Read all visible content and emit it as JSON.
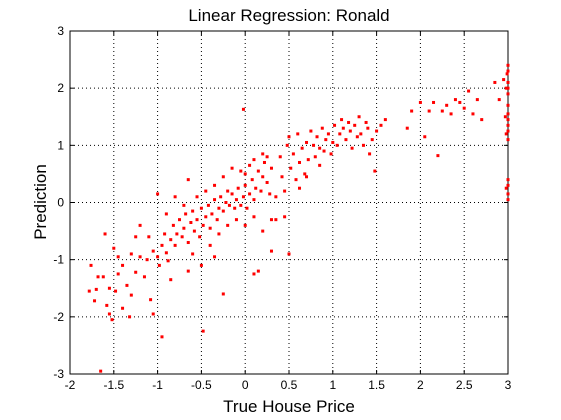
{
  "chart_data": {
    "type": "scatter",
    "title": "Linear Regression: Ronald",
    "xlabel": "True House Price",
    "ylabel": "Prediction",
    "xlim": [
      -2,
      3
    ],
    "ylim": [
      -3,
      3
    ],
    "x_ticks": [
      -2,
      -1.5,
      -1,
      -0.5,
      0,
      0.5,
      1,
      1.5,
      2,
      2.5,
      3
    ],
    "x_tick_labels": [
      "-2",
      "-1.5",
      "-1",
      "-0.5",
      "0",
      "0.5",
      "1",
      "1.5",
      "2",
      "2.5",
      "3"
    ],
    "y_ticks": [
      -3,
      -2,
      -1,
      0,
      1,
      2,
      3
    ],
    "y_tick_labels": [
      "-3",
      "-2",
      "-1",
      "0",
      "1",
      "2",
      "3"
    ],
    "grid": true,
    "marker": "point",
    "color": "#ff0000",
    "points": [
      [
        -1.76,
        -1.1
      ],
      [
        -1.7,
        -1.52
      ],
      [
        -1.72,
        -1.72
      ],
      [
        -1.62,
        -1.3
      ],
      [
        -1.58,
        -1.8
      ],
      [
        -1.55,
        -1.95
      ],
      [
        -1.52,
        -2.05
      ],
      [
        -1.48,
        -1.55
      ],
      [
        -1.45,
        -1.25
      ],
      [
        -1.4,
        -1.1
      ],
      [
        -1.35,
        -1.45
      ],
      [
        -1.3,
        -1.62
      ],
      [
        -1.25,
        -1.22
      ],
      [
        -1.2,
        -0.95
      ],
      [
        -1.15,
        -1.3
      ],
      [
        -1.6,
        -0.55
      ],
      [
        -1.5,
        -0.8
      ],
      [
        -1.45,
        -0.95
      ],
      [
        -1.3,
        -0.9
      ],
      [
        -1.25,
        -0.6
      ],
      [
        -1.12,
        -1.0
      ],
      [
        -1.05,
        -0.85
      ],
      [
        -1.0,
        -0.95
      ],
      [
        -0.98,
        -1.1
      ],
      [
        -0.95,
        -0.75
      ],
      [
        -0.92,
        -0.55
      ],
      [
        -0.9,
        -0.88
      ],
      [
        -0.88,
        -1.02
      ],
      [
        -0.85,
        -0.65
      ],
      [
        -0.82,
        -0.4
      ],
      [
        -0.8,
        -0.75
      ],
      [
        -0.78,
        -0.55
      ],
      [
        -0.75,
        -0.3
      ],
      [
        -0.72,
        -0.6
      ],
      [
        -0.7,
        -0.45
      ],
      [
        -0.68,
        -0.2
      ],
      [
        -0.65,
        -0.7
      ],
      [
        -0.62,
        -0.35
      ],
      [
        -0.6,
        -0.15
      ],
      [
        -0.58,
        -0.5
      ],
      [
        -0.55,
        -0.3
      ],
      [
        -0.52,
        -0.6
      ],
      [
        -0.5,
        -0.1
      ],
      [
        -0.48,
        -0.4
      ],
      [
        -0.45,
        -0.25
      ],
      [
        -0.42,
        -0.05
      ],
      [
        -0.4,
        -0.45
      ],
      [
        -0.38,
        -0.2
      ],
      [
        -0.35,
        0.05
      ],
      [
        -0.32,
        -0.3
      ],
      [
        -0.3,
        -0.1
      ],
      [
        -0.28,
        0.1
      ],
      [
        -0.25,
        -0.15
      ],
      [
        -0.22,
        0.0
      ],
      [
        -0.2,
        0.2
      ],
      [
        -0.18,
        -0.05
      ],
      [
        -0.15,
        0.15
      ],
      [
        -0.12,
        -0.1
      ],
      [
        -0.1,
        0.05
      ],
      [
        -0.08,
        0.25
      ],
      [
        -0.05,
        -0.05
      ],
      [
        -0.02,
        0.1
      ],
      [
        0.0,
        0.3
      ],
      [
        0.02,
        -0.1
      ],
      [
        0.05,
        0.15
      ],
      [
        0.08,
        0.4
      ],
      [
        0.1,
        0.05
      ],
      [
        0.12,
        0.25
      ],
      [
        0.15,
        0.55
      ],
      [
        0.18,
        0.2
      ],
      [
        0.2,
        0.45
      ],
      [
        0.22,
        0.7
      ],
      [
        0.25,
        0.35
      ],
      [
        0.28,
        0.15
      ],
      [
        0.3,
        0.6
      ],
      [
        0.05,
        0.65
      ],
      [
        -0.05,
        0.55
      ],
      [
        0.1,
        0.75
      ],
      [
        0.2,
        0.85
      ],
      [
        0.25,
        0.8
      ],
      [
        -0.6,
        -0.9
      ],
      [
        -0.5,
        -1.1
      ],
      [
        -0.4,
        -0.75
      ],
      [
        -0.3,
        -0.55
      ],
      [
        -0.2,
        -0.4
      ],
      [
        -0.1,
        -0.3
      ],
      [
        0.0,
        -0.4
      ],
      [
        0.1,
        -0.25
      ],
      [
        0.2,
        -0.5
      ],
      [
        0.3,
        -0.3
      ],
      [
        -0.8,
        0.1
      ],
      [
        -0.7,
        -0.05
      ],
      [
        -0.55,
        0.1
      ],
      [
        -0.65,
        0.4
      ],
      [
        -0.35,
        0.3
      ],
      [
        -0.45,
        0.2
      ],
      [
        -0.25,
        0.45
      ],
      [
        0.0,
        0.5
      ],
      [
        -0.15,
        0.6
      ],
      [
        -1.0,
        0.15
      ],
      [
        -0.9,
        -0.2
      ],
      [
        -1.1,
        -0.6
      ],
      [
        -1.2,
        -0.4
      ],
      [
        -0.85,
        -1.35
      ],
      [
        -0.65,
        -1.2
      ],
      [
        -0.35,
        -0.95
      ],
      [
        0.1,
        -1.25
      ],
      [
        0.15,
        -1.2
      ],
      [
        -0.25,
        -1.6
      ],
      [
        -0.48,
        -2.25
      ],
      [
        -0.95,
        -2.35
      ],
      [
        -1.05,
        -1.95
      ],
      [
        -1.08,
        -1.7
      ],
      [
        -1.65,
        -2.95
      ],
      [
        -1.55,
        -1.5
      ],
      [
        -1.78,
        -1.55
      ],
      [
        -1.68,
        -1.3
      ],
      [
        -1.4,
        -1.85
      ],
      [
        -1.32,
        -2.0
      ],
      [
        -0.02,
        1.63
      ],
      [
        0.35,
        0.1
      ],
      [
        0.35,
        -0.3
      ],
      [
        0.4,
        0.8
      ],
      [
        0.42,
        0.45
      ],
      [
        0.45,
        0.2
      ],
      [
        0.48,
        1.0
      ],
      [
        0.5,
        1.15
      ],
      [
        0.52,
        0.6
      ],
      [
        0.55,
        0.85
      ],
      [
        0.58,
        0.4
      ],
      [
        0.6,
        1.2
      ],
      [
        0.62,
        0.7
      ],
      [
        0.65,
        0.95
      ],
      [
        0.68,
        0.5
      ],
      [
        0.7,
        1.05
      ],
      [
        0.72,
        0.75
      ],
      [
        0.75,
        1.25
      ],
      [
        0.78,
        1.0
      ],
      [
        0.8,
        0.8
      ],
      [
        0.82,
        1.15
      ],
      [
        0.85,
        0.95
      ],
      [
        0.88,
        1.3
      ],
      [
        0.9,
        0.9
      ],
      [
        0.92,
        1.1
      ],
      [
        0.95,
        1.2
      ],
      [
        0.98,
        0.85
      ],
      [
        1.0,
        1.05
      ],
      [
        1.02,
        1.35
      ],
      [
        1.05,
        1.0
      ],
      [
        1.08,
        1.2
      ],
      [
        1.1,
        1.45
      ],
      [
        1.12,
        1.3
      ],
      [
        1.15,
        1.1
      ],
      [
        1.18,
        1.4
      ],
      [
        1.2,
        1.25
      ],
      [
        1.22,
        0.95
      ],
      [
        1.25,
        1.35
      ],
      [
        1.28,
        1.15
      ],
      [
        1.3,
        1.5
      ],
      [
        1.32,
        1.2
      ],
      [
        1.35,
        1.0
      ],
      [
        1.38,
        1.4
      ],
      [
        1.4,
        1.3
      ],
      [
        1.42,
        0.85
      ],
      [
        1.45,
        1.1
      ],
      [
        1.48,
        0.55
      ],
      [
        1.5,
        1.25
      ],
      [
        1.55,
        1.35
      ],
      [
        1.6,
        1.45
      ],
      [
        0.45,
        -0.25
      ],
      [
        0.5,
        -0.9
      ],
      [
        0.3,
        -0.85
      ],
      [
        0.62,
        0.25
      ],
      [
        0.7,
        0.45
      ],
      [
        0.85,
        0.65
      ],
      [
        1.85,
        1.3
      ],
      [
        1.9,
        1.6
      ],
      [
        2.0,
        1.75
      ],
      [
        2.05,
        1.15
      ],
      [
        2.1,
        1.6
      ],
      [
        2.15,
        1.75
      ],
      [
        2.2,
        0.82
      ],
      [
        2.25,
        1.6
      ],
      [
        2.3,
        1.7
      ],
      [
        2.35,
        1.55
      ],
      [
        2.4,
        1.8
      ],
      [
        2.45,
        1.75
      ],
      [
        2.5,
        1.65
      ],
      [
        2.55,
        1.95
      ],
      [
        2.6,
        1.55
      ],
      [
        2.65,
        1.8
      ],
      [
        2.7,
        1.45
      ],
      [
        2.85,
        2.1
      ],
      [
        2.9,
        1.8
      ],
      [
        2.95,
        2.15
      ],
      [
        3.0,
        2.4
      ],
      [
        3.0,
        2.3
      ],
      [
        3.0,
        2.1
      ],
      [
        3.0,
        2.0
      ],
      [
        3.0,
        1.9
      ],
      [
        3.0,
        1.7
      ],
      [
        3.0,
        1.55
      ],
      [
        3.0,
        1.45
      ],
      [
        3.0,
        1.35
      ],
      [
        3.0,
        1.25
      ],
      [
        3.0,
        1.1
      ],
      [
        3.0,
        0.4
      ],
      [
        3.0,
        0.3
      ],
      [
        3.0,
        0.15
      ],
      [
        3.0,
        0.05
      ],
      [
        2.98,
        2.0
      ],
      [
        2.97,
        1.5
      ],
      [
        2.98,
        1.2
      ],
      [
        2.98,
        0.25
      ],
      [
        2.99,
        2.25
      ]
    ]
  }
}
